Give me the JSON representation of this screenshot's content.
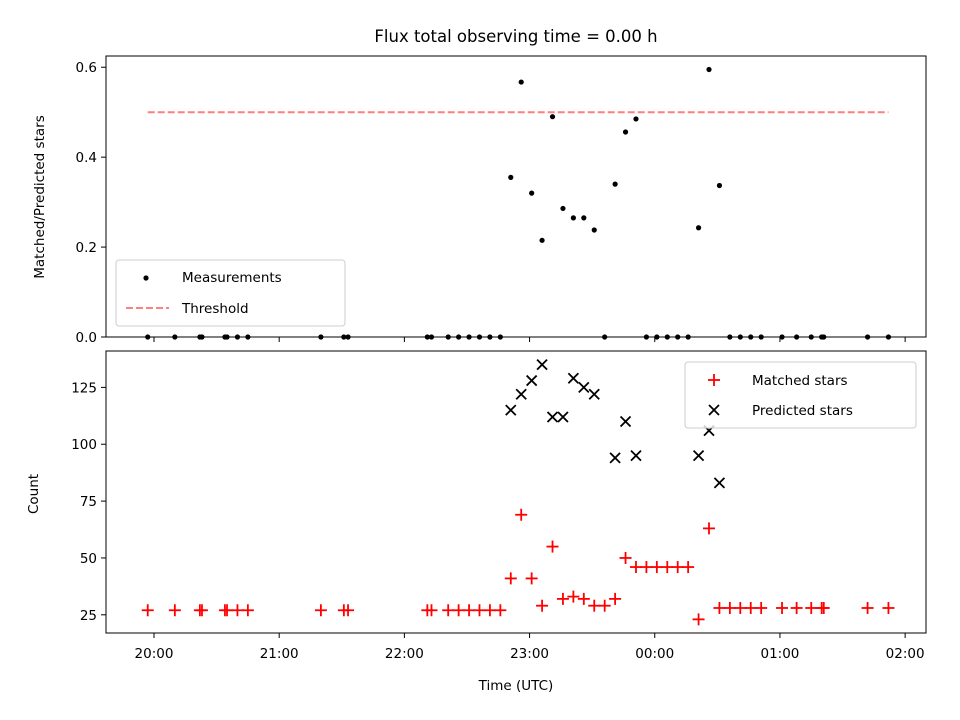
{
  "chart_data": [
    {
      "type": "scatter",
      "title": "Flux total observing time = 0.00 h",
      "ylabel": "Matched/Predicted stars",
      "xlabel": "",
      "x_axis": "time",
      "xlim": [
        "19:37",
        "02:10"
      ],
      "ylim": [
        0,
        0.625
      ],
      "yticks": [
        0.0,
        0.2,
        0.4,
        0.6
      ],
      "ytick_labels": [
        "0.0",
        "0.2",
        "0.4",
        "0.6"
      ],
      "grid": false,
      "legend_position": "lower-left",
      "series": [
        {
          "name": "Measurements",
          "kind": "scatter",
          "color": "#000000",
          "points": [
            [
              "19:57",
              0
            ],
            [
              "20:10",
              0
            ],
            [
              "20:22",
              0
            ],
            [
              "20:23",
              0
            ],
            [
              "20:34",
              0
            ],
            [
              "20:35",
              0
            ],
            [
              "20:40",
              0
            ],
            [
              "20:45",
              0
            ],
            [
              "21:20",
              0
            ],
            [
              "21:31",
              0
            ],
            [
              "21:33",
              0
            ],
            [
              "22:11",
              0
            ],
            [
              "22:13",
              0
            ],
            [
              "22:21",
              0
            ],
            [
              "22:26",
              0
            ],
            [
              "22:31",
              0
            ],
            [
              "22:36",
              0
            ],
            [
              "22:41",
              0
            ],
            [
              "22:46",
              0
            ],
            [
              "22:51",
              0.355
            ],
            [
              "22:56",
              0.567
            ],
            [
              "23:01",
              0.32
            ],
            [
              "23:06",
              0.215
            ],
            [
              "23:11",
              0.49
            ],
            [
              "23:16",
              0.286
            ],
            [
              "23:21",
              0.265
            ],
            [
              "23:26",
              0.265
            ],
            [
              "23:31",
              0.238
            ],
            [
              "23:36",
              0
            ],
            [
              "23:41",
              0.34
            ],
            [
              "23:46",
              0.456
            ],
            [
              "23:51",
              0.485
            ],
            [
              "23:56",
              0
            ],
            [
              "00:01",
              0
            ],
            [
              "00:06",
              0
            ],
            [
              "00:11",
              0
            ],
            [
              "00:16",
              0
            ],
            [
              "00:21",
              0.243
            ],
            [
              "00:26",
              0.595
            ],
            [
              "00:31",
              0.337
            ],
            [
              "00:36",
              0
            ],
            [
              "00:41",
              0
            ],
            [
              "00:46",
              0
            ],
            [
              "00:51",
              0
            ],
            [
              "01:01",
              0
            ],
            [
              "01:08",
              0
            ],
            [
              "01:15",
              0
            ],
            [
              "01:20",
              0
            ],
            [
              "01:21",
              0
            ],
            [
              "01:42",
              0
            ],
            [
              "01:52",
              0
            ]
          ]
        },
        {
          "name": "Threshold",
          "kind": "line",
          "style": "dashed",
          "color": "#ff7f7f",
          "points": [
            [
              "19:57",
              0.5
            ],
            [
              "01:52",
              0.5
            ]
          ]
        }
      ]
    },
    {
      "type": "scatter",
      "title": "",
      "ylabel": "Count",
      "xlabel": "Time (UTC)",
      "x_axis": "time",
      "xlim": [
        "19:37",
        "02:10"
      ],
      "ylim": [
        17,
        141
      ],
      "yticks": [
        25,
        50,
        75,
        100,
        125
      ],
      "ytick_labels": [
        "25",
        "50",
        "75",
        "100",
        "125"
      ],
      "xticks": [
        "20:00",
        "21:00",
        "22:00",
        "23:00",
        "00:00",
        "01:00",
        "02:00"
      ],
      "xtick_labels": [
        "20:00",
        "21:00",
        "22:00",
        "23:00",
        "00:00",
        "01:00",
        "02:00"
      ],
      "grid": false,
      "legend_position": "top-right",
      "series": [
        {
          "name": "Matched stars",
          "marker": "plus",
          "color": "#ff0000",
          "points": [
            [
              "19:57",
              27
            ],
            [
              "20:10",
              27
            ],
            [
              "20:22",
              27
            ],
            [
              "20:23",
              27
            ],
            [
              "20:34",
              27
            ],
            [
              "20:35",
              27
            ],
            [
              "20:40",
              27
            ],
            [
              "20:45",
              27
            ],
            [
              "21:20",
              27
            ],
            [
              "21:31",
              27
            ],
            [
              "21:33",
              27
            ],
            [
              "22:11",
              27
            ],
            [
              "22:13",
              27
            ],
            [
              "22:21",
              27
            ],
            [
              "22:26",
              27
            ],
            [
              "22:31",
              27
            ],
            [
              "22:36",
              27
            ],
            [
              "22:41",
              27
            ],
            [
              "22:46",
              27
            ],
            [
              "22:51",
              41
            ],
            [
              "22:56",
              69
            ],
            [
              "23:01",
              41
            ],
            [
              "23:06",
              29
            ],
            [
              "23:11",
              55
            ],
            [
              "23:16",
              32
            ],
            [
              "23:21",
              33
            ],
            [
              "23:26",
              32
            ],
            [
              "23:31",
              29
            ],
            [
              "23:36",
              29
            ],
            [
              "23:41",
              32
            ],
            [
              "23:46",
              50
            ],
            [
              "23:51",
              46
            ],
            [
              "23:56",
              46
            ],
            [
              "00:01",
              46
            ],
            [
              "00:06",
              46
            ],
            [
              "00:11",
              46
            ],
            [
              "00:16",
              46
            ],
            [
              "00:21",
              23
            ],
            [
              "00:26",
              63
            ],
            [
              "00:31",
              28
            ],
            [
              "00:36",
              28
            ],
            [
              "00:41",
              28
            ],
            [
              "00:46",
              28
            ],
            [
              "00:51",
              28
            ],
            [
              "01:01",
              28
            ],
            [
              "01:08",
              28
            ],
            [
              "01:15",
              28
            ],
            [
              "01:20",
              28
            ],
            [
              "01:21",
              28
            ],
            [
              "01:42",
              28
            ],
            [
              "01:52",
              28
            ]
          ]
        },
        {
          "name": "Predicted stars",
          "marker": "x",
          "color": "#000000",
          "points": [
            [
              "22:51",
              115
            ],
            [
              "22:56",
              122
            ],
            [
              "23:01",
              128
            ],
            [
              "23:06",
              135
            ],
            [
              "23:11",
              112
            ],
            [
              "23:16",
              112
            ],
            [
              "23:21",
              129
            ],
            [
              "23:26",
              125
            ],
            [
              "23:31",
              122
            ],
            [
              "23:41",
              94
            ],
            [
              "23:46",
              110
            ],
            [
              "23:51",
              95
            ],
            [
              "00:21",
              95
            ],
            [
              "00:26",
              106
            ],
            [
              "00:31",
              83
            ]
          ]
        }
      ]
    }
  ]
}
